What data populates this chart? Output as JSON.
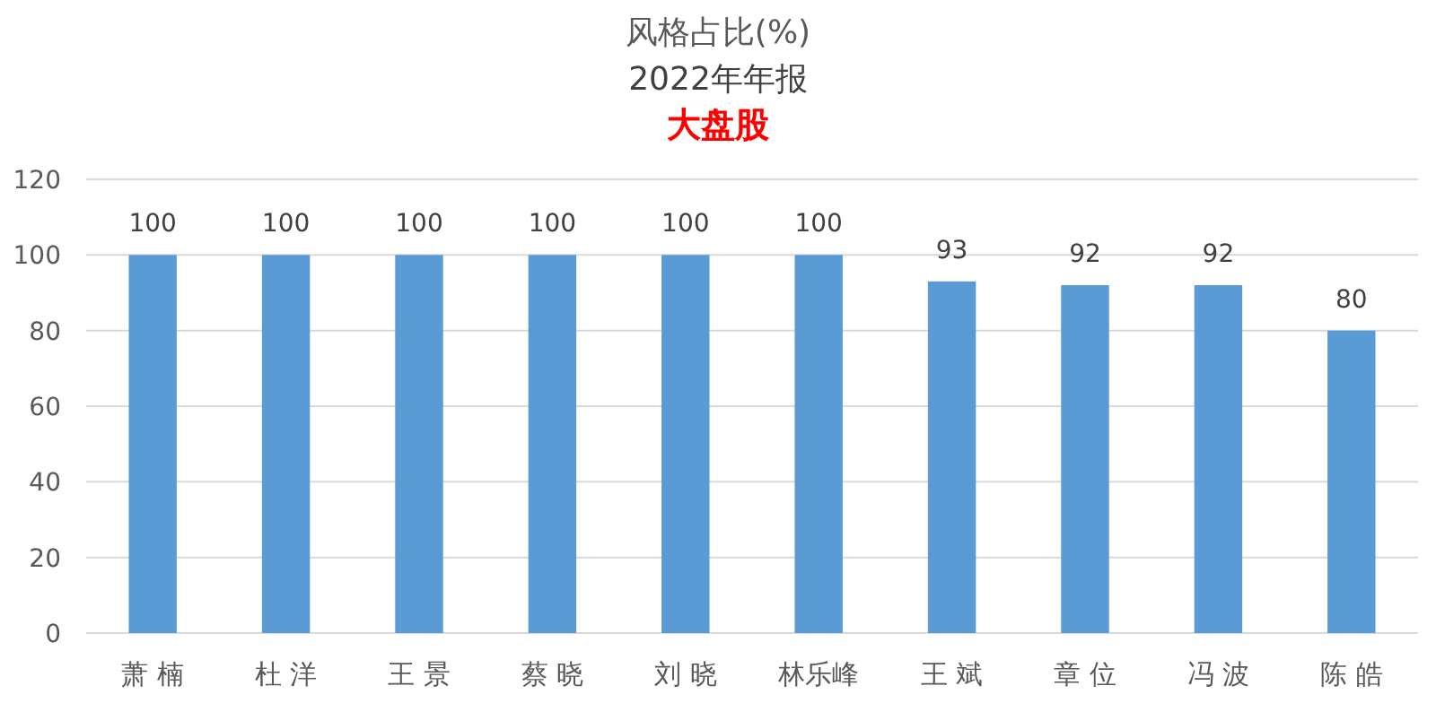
{
  "chart_data": {
    "type": "bar",
    "title": "风格占比(%)",
    "subtitle": "2022年年报",
    "annotations": [
      "大盘股"
    ],
    "categories": [
      "萧 楠",
      "杜 洋",
      "王 景",
      "蔡 晓",
      "刘 晓",
      "林乐峰",
      "王 斌",
      "章 位",
      "冯 波",
      "陈 皓"
    ],
    "values": [
      100,
      100,
      100,
      100,
      100,
      100,
      93,
      92,
      92,
      80
    ],
    "color": "#5b9bd5",
    "ylim": [
      0,
      120
    ],
    "yticks": [
      0,
      20,
      40,
      60,
      80,
      100,
      120
    ],
    "grid": "y",
    "data_labels": true
  }
}
